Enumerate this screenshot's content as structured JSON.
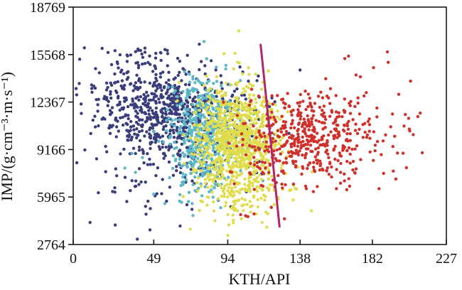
{
  "chart_data": {
    "type": "scatter",
    "title": "",
    "xlabel": "KTH/API",
    "ylabel": "IMP/(g·cm⁻³·m·s⁻¹)",
    "xlim": [
      0,
      227
    ],
    "ylim": [
      2764,
      18769
    ],
    "x_ticks": [
      0,
      49,
      94,
      138,
      182,
      227
    ],
    "y_ticks": [
      2764,
      5965,
      9166,
      12367,
      15568,
      18769
    ],
    "grid": false,
    "legend": "none",
    "axis_color": "#1a1a1a",
    "point_radius": 2.2,
    "clusters": [
      {
        "name": "navy-core",
        "color": "#3a3d7b",
        "count": 520,
        "x_mean": 50,
        "x_sd": 20,
        "y_mean": 11800,
        "y_sd": 1700,
        "corr": -0.15
      },
      {
        "name": "navy-right",
        "color": "#3a3d7b",
        "count": 300,
        "x_mean": 78,
        "x_sd": 22,
        "y_mean": 10800,
        "y_sd": 1900,
        "corr": 0
      },
      {
        "name": "navy-low",
        "color": "#3a3d7b",
        "count": 45,
        "x_mean": 52,
        "x_sd": 28,
        "y_mean": 6800,
        "y_sd": 1800,
        "corr": 0
      },
      {
        "name": "navy-top",
        "color": "#3a3d7b",
        "count": 22,
        "x_mean": 42,
        "x_sd": 18,
        "y_mean": 15350,
        "y_sd": 350,
        "corr": 0
      },
      {
        "name": "cyan-core",
        "color": "#5cb8c6",
        "count": 420,
        "x_mean": 80,
        "x_sd": 10,
        "y_mean": 10600,
        "y_sd": 1700,
        "corr": 0
      },
      {
        "name": "cyan-low",
        "color": "#5cb8c6",
        "count": 70,
        "x_mean": 76,
        "x_sd": 16,
        "y_mean": 7600,
        "y_sd": 1400,
        "corr": 0
      },
      {
        "name": "yellow-core",
        "color": "#dfdd4d",
        "count": 850,
        "x_mean": 100,
        "x_sd": 12,
        "y_mean": 9900,
        "y_sd": 1800,
        "corr": 0
      },
      {
        "name": "yellow-low",
        "color": "#dfdd4d",
        "count": 140,
        "x_mean": 103,
        "x_sd": 14,
        "y_mean": 6800,
        "y_sd": 1100,
        "corr": 0
      },
      {
        "name": "yellow-deep",
        "color": "#dfdd4d",
        "count": 10,
        "x_mean": 96,
        "x_sd": 18,
        "y_mean": 4100,
        "y_sd": 800,
        "corr": 0
      },
      {
        "name": "red-core",
        "color": "#d0302a",
        "count": 330,
        "x_mean": 143,
        "x_sd": 16,
        "y_mean": 10000,
        "y_sd": 1500,
        "corr": 0
      },
      {
        "name": "red-right",
        "color": "#d0302a",
        "count": 100,
        "x_mean": 168,
        "x_sd": 22,
        "y_mean": 10300,
        "y_sd": 1900,
        "corr": 0
      },
      {
        "name": "red-mixed",
        "color": "#d0302a",
        "count": 70,
        "x_mean": 114,
        "x_sd": 10,
        "y_mean": 9300,
        "y_sd": 2100,
        "corr": 0
      },
      {
        "name": "red-outliers",
        "color": "#d0302a",
        "count": 14,
        "x_mean": 188,
        "x_sd": 16,
        "y_mean": 12200,
        "y_sd": 2300,
        "corr": 0
      }
    ],
    "trend_line": {
      "name": "cutoff-line",
      "color": "#b2246c",
      "x1": 114,
      "y1": 16230,
      "x2": 125.5,
      "y2": 3970,
      "stroke_width": 3
    }
  }
}
